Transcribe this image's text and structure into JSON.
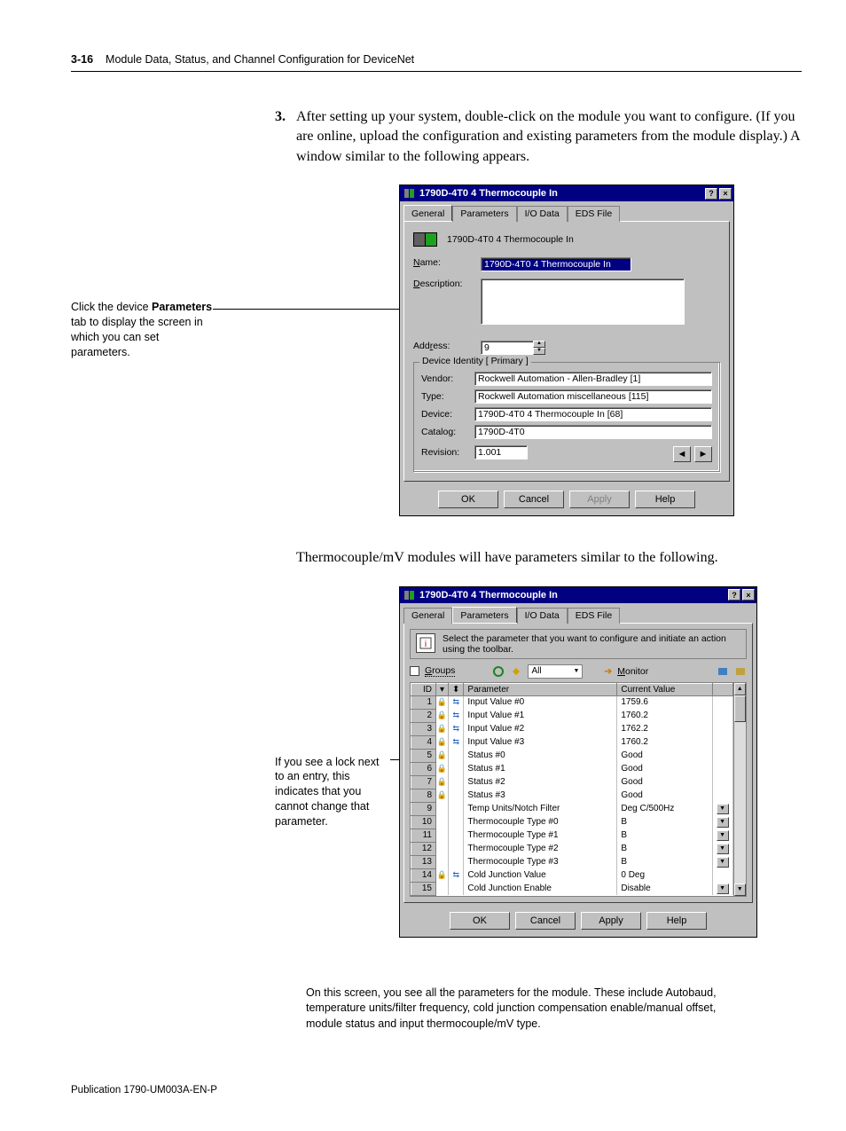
{
  "header": {
    "page": "3-16",
    "title": "Module Data, Status, and Channel Configuration for DeviceNet"
  },
  "step": {
    "num": "3.",
    "text": "After setting up your system, double-click on the module you want to configure. (If you are online, upload the configuration and existing parameters from the module display.) A window similar to the following appears."
  },
  "caption1": {
    "l1": "Click the device ",
    "l2b": "Parameters",
    "l2a": " tab to display the screen in which you can set parameters."
  },
  "dlg1": {
    "title": "1790D-4T0 4 Thermocouple In",
    "tabs": [
      "General",
      "Parameters",
      "I/O Data",
      "EDS File"
    ],
    "module_label": "1790D-4T0 4 Thermocouple In",
    "name_lbl": "Name:",
    "name_u": "N",
    "name_val": "1790D-4T0 4 Thermocouple In",
    "desc_lbl": "Description:",
    "desc_u": "D",
    "addr_lbl": "Address:",
    "addr_u": "r",
    "addr_val": "9",
    "group_lbl": "Device Identity [ Primary ]",
    "vendor_lbl": "Vendor:",
    "vendor_val": "Rockwell Automation - Allen-Bradley [1]",
    "type_lbl": "Type:",
    "type_val": "Rockwell Automation miscellaneous [115]",
    "device_lbl": "Device:",
    "device_val": "1790D-4T0 4 Thermocouple In [68]",
    "catalog_lbl": "Catalog:",
    "catalog_val": "1790D-4T0",
    "rev_lbl": "Revision:",
    "rev_val": "1.001",
    "btns": {
      "ok": "OK",
      "cancel": "Cancel",
      "apply": "Apply",
      "help": "Help"
    }
  },
  "mid_text": "Thermocouple/mV modules will have parameters similar to the following.",
  "caption2": "If you see a lock next to an entry, this indicates that you cannot change that parameter.",
  "dlg2": {
    "title": "1790D-4T0 4 Thermocouple In",
    "tabs": [
      "General",
      "Parameters",
      "I/O Data",
      "EDS File"
    ],
    "info": "Select the parameter that you want to configure and initiate an action using the toolbar.",
    "groups_lbl": "Groups",
    "groups_u": "G",
    "filter_val": "All",
    "monitor_lbl": "Monitor",
    "monitor_u": "M",
    "cols": {
      "id": "ID",
      "param": "Parameter",
      "cur": "Current Value"
    },
    "rows": [
      {
        "id": "1",
        "lock": true,
        "link": true,
        "p": "Input Value #0",
        "v": "1759.6",
        "dd": false
      },
      {
        "id": "2",
        "lock": true,
        "link": true,
        "p": "Input Value #1",
        "v": "1760.2",
        "dd": false
      },
      {
        "id": "3",
        "lock": true,
        "link": true,
        "p": "Input Value #2",
        "v": "1762.2",
        "dd": false
      },
      {
        "id": "4",
        "lock": true,
        "link": true,
        "p": "Input Value #3",
        "v": "1760.2",
        "dd": false
      },
      {
        "id": "5",
        "lock": true,
        "link": false,
        "p": "Status #0",
        "v": "Good",
        "dd": false
      },
      {
        "id": "6",
        "lock": true,
        "link": false,
        "p": "Status #1",
        "v": "Good",
        "dd": false
      },
      {
        "id": "7",
        "lock": true,
        "link": false,
        "p": "Status #2",
        "v": "Good",
        "dd": false
      },
      {
        "id": "8",
        "lock": true,
        "link": false,
        "p": "Status #3",
        "v": "Good",
        "dd": false
      },
      {
        "id": "9",
        "lock": false,
        "link": false,
        "p": "Temp Units/Notch Filter",
        "v": "Deg C/500Hz",
        "dd": true
      },
      {
        "id": "10",
        "lock": false,
        "link": false,
        "p": "Thermocouple Type #0",
        "v": "B",
        "dd": true
      },
      {
        "id": "11",
        "lock": false,
        "link": false,
        "p": "Thermocouple Type #1",
        "v": "B",
        "dd": true
      },
      {
        "id": "12",
        "lock": false,
        "link": false,
        "p": "Thermocouple Type #2",
        "v": "B",
        "dd": true
      },
      {
        "id": "13",
        "lock": false,
        "link": false,
        "p": "Thermocouple Type #3",
        "v": "B",
        "dd": true
      },
      {
        "id": "14",
        "lock": true,
        "link": true,
        "p": "Cold Junction Value",
        "v": "0 Deg",
        "dd": false
      },
      {
        "id": "15",
        "lock": false,
        "link": false,
        "p": "Cold Junction Enable",
        "v": "Disable",
        "dd": true
      }
    ],
    "btns": {
      "ok": "OK",
      "cancel": "Cancel",
      "apply": "Apply",
      "help": "Help"
    }
  },
  "screen_note": "On this screen, you see all the parameters for the module. These include Autobaud, temperature units/filter frequency, cold junction compensation enable/manual offset, module status and input thermocouple/mV type.",
  "pub": "Publication 1790-UM003A-EN-P"
}
